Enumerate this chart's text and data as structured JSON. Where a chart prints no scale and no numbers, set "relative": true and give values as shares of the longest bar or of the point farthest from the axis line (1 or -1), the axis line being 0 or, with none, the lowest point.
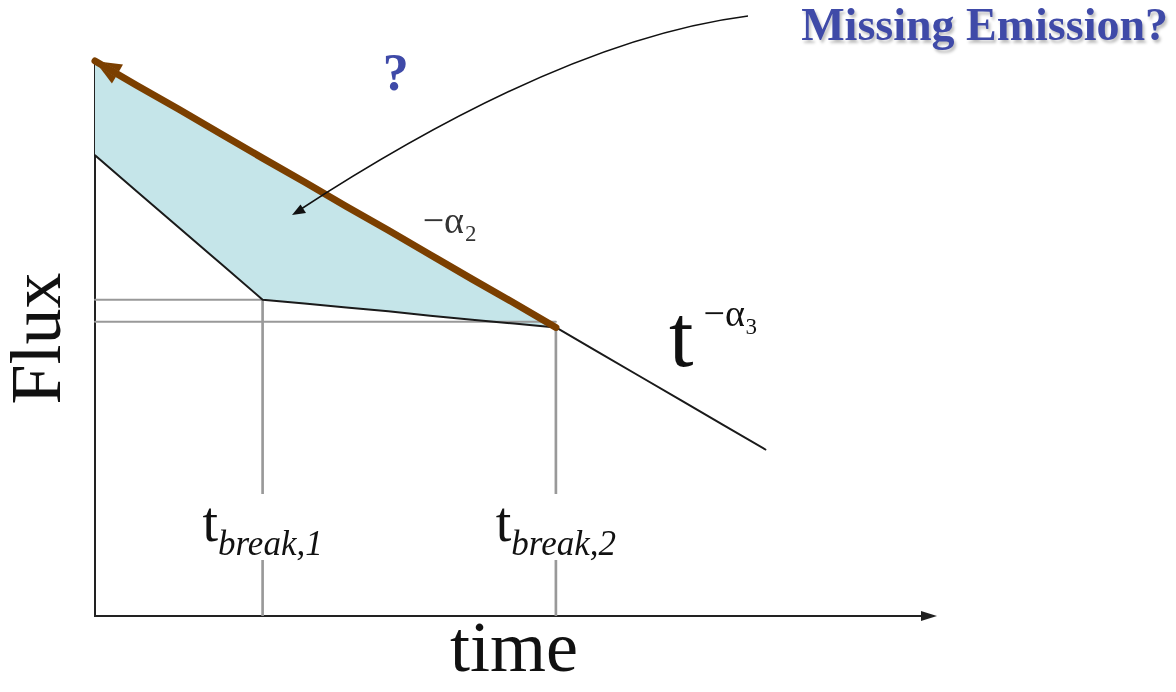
{
  "chart_data": {
    "type": "line",
    "title": "Missing Emission?",
    "xlabel": "time",
    "ylabel": "Flux",
    "relative": true,
    "categories": [
      null,
      null,
      null,
      null,
      "t$_{break,1}$",
      null,
      null,
      null,
      null,
      null,
      null,
      "t$_{break,2}$",
      null,
      null,
      null,
      null,
      null,
      null,
      null,
      null,
      null
    ],
    "series": [
      {
        "color": "#999999",
        "values": [
          0.57,
          0.57,
          0.57,
          0.57,
          0.57,
          null,
          null,
          null,
          null,
          null,
          null,
          null,
          null,
          null,
          null,
          null,
          null,
          null,
          null,
          null,
          null
        ]
      },
      {
        "color": "#999999",
        "values": [
          0.53,
          0.53,
          0.53,
          0.53,
          0.53,
          0.53,
          0.53,
          0.53,
          0.53,
          0.53,
          0.53,
          0.53,
          null,
          null,
          null,
          null,
          null,
          null,
          null,
          null,
          null
        ]
      },
      {
        "type": "bar",
        "color": "#999999",
        "values": [
          null,
          null,
          null,
          null,
          0.57,
          null,
          null,
          null,
          null,
          null,
          null,
          0.52,
          null,
          null,
          null,
          null,
          null,
          null,
          null,
          null,
          null
        ]
      },
      {
        "color": "#1a1a1a",
        "values": [
          0.83,
          0.765,
          0.7,
          0.635,
          0.57,
          0.563,
          0.556,
          0.549,
          0.541,
          0.534,
          0.527,
          0.52,
          0.476,
          0.432,
          0.388,
          0.344,
          0.3,
          null,
          null,
          null,
          null
        ]
      },
      {
        "color": "#7b3f00",
        "values": [
          1,
          0.956,
          0.913,
          0.869,
          0.825,
          0.782,
          0.738,
          0.695,
          0.651,
          0.607,
          0.564,
          0.52,
          null,
          null,
          null,
          null,
          null,
          null,
          null,
          null,
          null
        ],
        "lower": [
          0.83,
          0.765,
          0.7,
          0.635,
          0.57,
          0.563,
          0.556,
          0.549,
          0.541,
          0.534,
          0.527,
          0.52,
          null,
          null,
          null,
          null,
          null,
          null,
          null,
          null,
          null
        ],
        "upper": [
          1,
          0.956,
          0.913,
          0.869,
          0.825,
          0.782,
          0.738,
          0.695,
          0.651,
          0.607,
          0.564,
          0.52,
          null,
          null,
          null,
          null,
          null,
          null,
          null,
          null,
          null
        ]
      }
    ],
    "annotations": [
      "?",
      "t$^{−α₃}$",
      "−α₂"
    ]
  }
}
